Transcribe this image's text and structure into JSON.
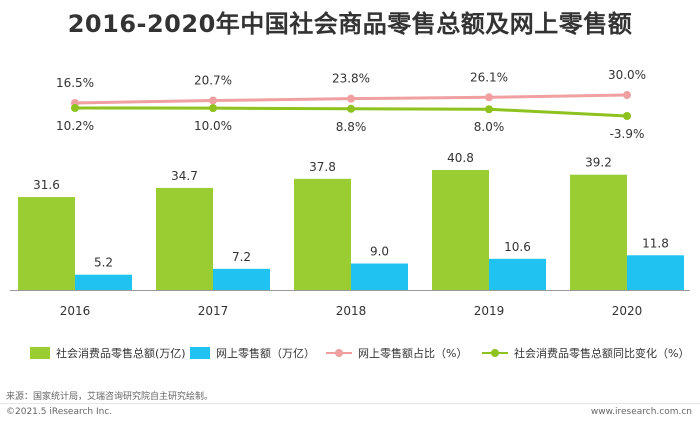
{
  "title": "2016-2020年中国社会商品零售总额及网上零售额",
  "chart_data": {
    "type": "bar",
    "categories": [
      "2016",
      "2017",
      "2018",
      "2019",
      "2020"
    ],
    "series": [
      {
        "name": "社会消费品零售总额(万亿)",
        "kind": "bar",
        "color": "#9ACD32",
        "values": [
          31.6,
          34.7,
          37.8,
          40.8,
          39.2
        ],
        "labels": [
          "31.6",
          "34.7",
          "37.8",
          "40.8",
          "39.2"
        ]
      },
      {
        "name": "网上零售额（万亿）",
        "kind": "bar",
        "color": "#1FC2F0",
        "values": [
          5.2,
          7.2,
          9.0,
          10.6,
          11.8
        ],
        "labels": [
          "5.2",
          "7.2",
          "9.0",
          "10.6",
          "11.8"
        ]
      },
      {
        "name": "网上零售额占比（%）",
        "kind": "line",
        "color": "#F0A0A0",
        "values": [
          16.5,
          20.7,
          23.8,
          26.1,
          30.0
        ],
        "labels": [
          "16.5%",
          "20.7%",
          "23.8%",
          "26.1%",
          "30.0%"
        ]
      },
      {
        "name": "社会消费品零售总额同比变化（%）",
        "kind": "line",
        "color": "#8DC21F",
        "values": [
          10.2,
          10.0,
          8.8,
          8.0,
          -3.9
        ],
        "labels": [
          "10.2%",
          "10.0%",
          "8.8%",
          "8.0%",
          "-3.9%"
        ]
      }
    ],
    "bar_ylim": [
      0,
      40.8
    ],
    "legend_position": "bottom",
    "grid": false
  },
  "source": "来源：国家统计局，艾瑞咨询研究院自主研究绘制。",
  "footer_left": "©2021.5 iResearch Inc.",
  "footer_right": "www.iresearch.com.cn"
}
